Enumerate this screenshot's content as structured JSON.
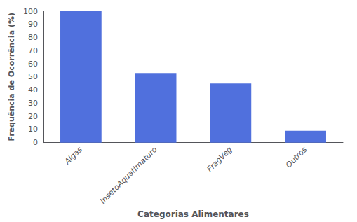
{
  "chart_data": {
    "type": "bar",
    "categories": [
      "Algas",
      "InsetoAquatImaturo",
      "FragVeg",
      "Outros"
    ],
    "values": [
      100,
      53,
      45,
      9
    ],
    "xlabel": "Categorias Alimentares",
    "ylabel": "Frequência de Ocorrência (%)",
    "ylim": [
      0,
      100
    ],
    "yticks": [
      0,
      10,
      20,
      30,
      40,
      50,
      60,
      70,
      80,
      90,
      100
    ],
    "grid": false
  }
}
